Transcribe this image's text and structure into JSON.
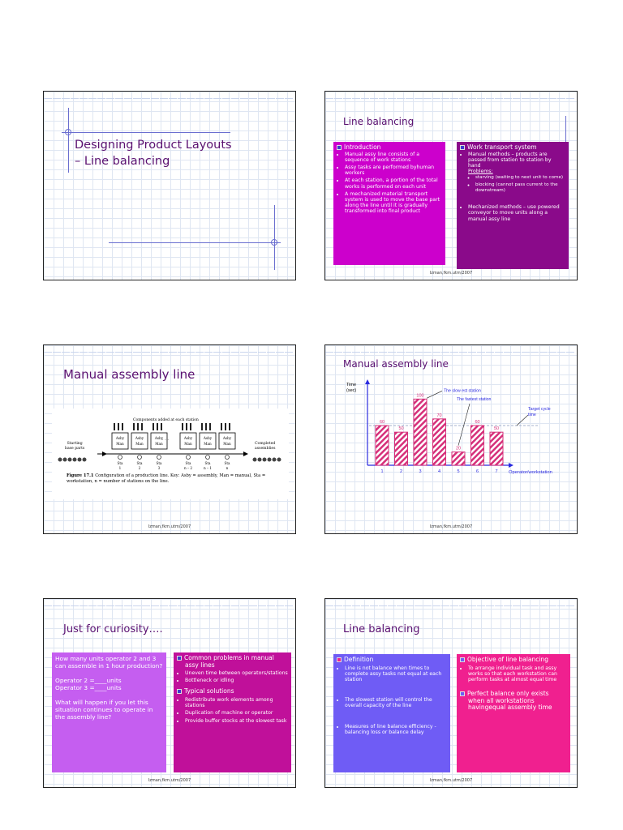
{
  "slides": [
    {
      "title_line1": "Designing Product Layouts",
      "title_line2": "– Line balancing"
    },
    {
      "title": "Line balancing",
      "left": {
        "head": "Introduction",
        "bullets": [
          "Manual assy line consists of a sequence of work stations",
          "Assy tasks are performed byhuman workers",
          "At each station, a portion of the total works is performed on each unit",
          "A mechanized material transport system is used to move the base part along the line until it is gradually transformed into final product"
        ]
      },
      "right": {
        "head": "Work transport system",
        "bullet1": "Manual methods – products are passed from station to station by hand",
        "problems": "Problems:",
        "sub1": "starving (waiting to next unit to come)",
        "sub2": "blocking (cannot pass current to the downstream)",
        "bullet2": "Mechanized methods – use powered conveyor to move units along a manual assy line"
      },
      "footer": "Izman,fkm.utm/2007"
    },
    {
      "title": "Manual assembly line",
      "figure": {
        "top_label": "Components added at each station",
        "left_label_1": "Starting",
        "left_label_2": "base parts",
        "right_label_1": "Completed",
        "right_label_2": "assemblies",
        "station_top": [
          "Asby",
          "Asby",
          "Asby",
          "Asby",
          "Asby",
          "Asby"
        ],
        "station_bottom": [
          "Man",
          "Man",
          "Man",
          "Man",
          "Man",
          "Man"
        ],
        "sta_word": "Sta",
        "sta_nums": [
          "1",
          "2",
          "3",
          "n – 2",
          "n – 1",
          "n"
        ],
        "caption_bold": "Figure 17.1",
        "caption_text": "Configuration of a production line. Key: Asby = assembly, Man = manual, Sta = workstation, n = number of stations on the line."
      },
      "footer": "Izman,fkm.utm/2007"
    },
    {
      "title": "Manual assembly line",
      "footer": "Izman,fkm.utm/2007",
      "annotations": {
        "slowest": "The slow est station",
        "fastest": "The fastest station",
        "target_1": "Target cycle",
        "target_2": "time"
      }
    },
    {
      "title": "Just for curiosity….",
      "left": {
        "q1": "How many units operator 2 and 3 can assemble in 1 hour production?",
        "op2": "Operator 2 =____units",
        "op3": "Operator 3 =____units",
        "q2": "What will happen if you let this situation continues to operate in the assembly line?"
      },
      "right": {
        "head1": "Common problems in manual assy lines",
        "b1": "Uneven time between operators/stations",
        "b2": "Bottleneck or idling",
        "head2": "Typical solutions",
        "b3": "Redistribute work elements among stations",
        "b4": "Duplication of machine or operator",
        "b5": "Provide buffer stocks at the slowest task"
      },
      "footer": "Izman,fkm.utm/2007"
    },
    {
      "title": "Line balancing",
      "left": {
        "head": "Definition",
        "b1": "Line is not balance when times to complete assy tasks not equal at each station",
        "b2": "The slowest station will control the overall capacity of the line",
        "b3": "Measures of line balance efficiency - balancing loss or balance delay"
      },
      "right": {
        "head": "Objective of line balancing",
        "b1": "To arrange individual task and assy works so that each workstation can perform tasks at almost equal time",
        "head2": "Perfect balance only exists when all workstations havingequal assembly time"
      },
      "footer": "Izman,fkm.utm/2007"
    }
  ],
  "chart_data": {
    "type": "bar",
    "categories": [
      "1",
      "2",
      "3",
      "4",
      "5",
      "6",
      "7"
    ],
    "values": [
      60,
      50,
      100,
      70,
      20,
      60,
      50
    ],
    "title": "",
    "ylabel": "Time (sec)",
    "xlabel": "Operator/workstation",
    "ylim": [
      0,
      120
    ],
    "target_cycle_time": 60,
    "bar_color": "#d6307a",
    "grid": false
  },
  "colors": {
    "title": "#5a1070",
    "magenta": "#cc00cc",
    "purple": "#8a0a8a",
    "violet": "#c55ef0",
    "deep_magenta": "#c0109a",
    "blue_violet": "#6f5cf5",
    "pink": "#f0208f"
  }
}
